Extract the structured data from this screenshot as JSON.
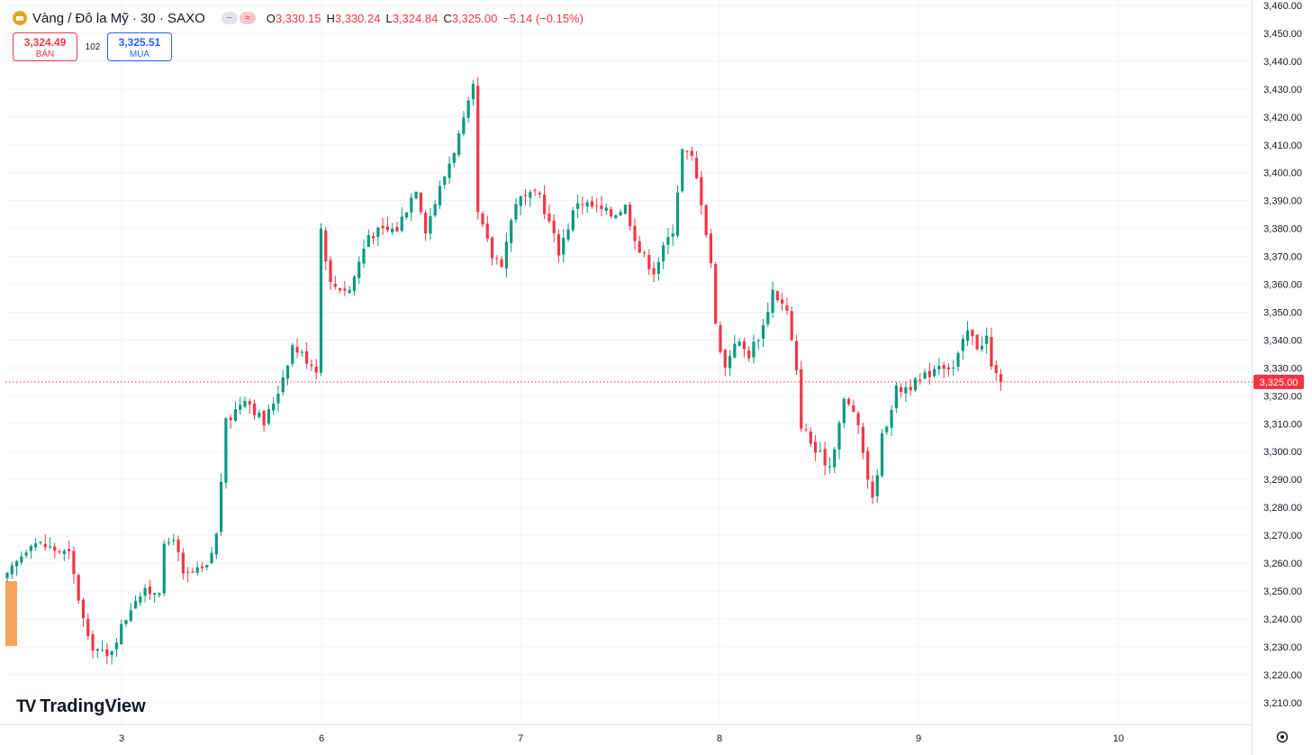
{
  "header": {
    "symbol_title": "Vàng / Đô la Mỹ · 30 · SAXO",
    "ohlc": {
      "o_label": "O",
      "o_value": "3,330.15",
      "h_label": "H",
      "h_value": "3,330.24",
      "l_label": "L",
      "l_value": "3,324.84",
      "c_label": "C",
      "c_value": "3,325.00",
      "change": "−5.14 (−0.15%)"
    }
  },
  "trade": {
    "sell_price": "3,324.49",
    "sell_label": "BÁN",
    "spread": "102",
    "buy_price": "3,325.51",
    "buy_label": "MUA"
  },
  "brand": {
    "name": "TradingView"
  },
  "colors": {
    "up": "#089981",
    "down": "#f23645",
    "grid": "#f0f3fa",
    "text": "#131722"
  },
  "chart_data": {
    "type": "candlestick",
    "interval": "30",
    "y_ticks": [
      "3,460.00",
      "3,450.00",
      "3,440.00",
      "3,430.00",
      "3,420.00",
      "3,410.00",
      "3,400.00",
      "3,390.00",
      "3,380.00",
      "3,370.00",
      "3,360.00",
      "3,350.00",
      "3,340.00",
      "3,330.00",
      "3,320.00",
      "3,310.00",
      "3,300.00",
      "3,290.00",
      "3,280.00",
      "3,270.00",
      "3,260.00",
      "3,250.00",
      "3,240.00",
      "3,230.00",
      "3,220.00",
      "3,210.00"
    ],
    "x_ticks": [
      "3",
      "6",
      "7",
      "8",
      "9",
      "10"
    ],
    "ylim": [
      3205,
      3462
    ],
    "last_price": 3325.0,
    "last_price_label": "3,325.00",
    "price_path": [
      {
        "t": 0,
        "p": 3255
      },
      {
        "t": 5,
        "p": 3268
      },
      {
        "t": 13,
        "p": 3263
      },
      {
        "t": 17,
        "p": 3232
      },
      {
        "t": 21,
        "p": 3226
      },
      {
        "t": 27,
        "p": 3248
      },
      {
        "t": 32,
        "p": 3251
      },
      {
        "t": 33,
        "p": 3265
      },
      {
        "t": 35,
        "p": 3270
      },
      {
        "t": 37,
        "p": 3255
      },
      {
        "t": 42,
        "p": 3258
      },
      {
        "t": 44,
        "p": 3270
      },
      {
        "t": 46,
        "p": 3310
      },
      {
        "t": 50,
        "p": 3320
      },
      {
        "t": 54,
        "p": 3310
      },
      {
        "t": 57,
        "p": 3322
      },
      {
        "t": 60,
        "p": 3338
      },
      {
        "t": 65,
        "p": 3330
      },
      {
        "t": 66,
        "p": 3380
      },
      {
        "t": 68,
        "p": 3360
      },
      {
        "t": 72,
        "p": 3358
      },
      {
        "t": 76,
        "p": 3378
      },
      {
        "t": 82,
        "p": 3380
      },
      {
        "t": 86,
        "p": 3395
      },
      {
        "t": 88,
        "p": 3380
      },
      {
        "t": 96,
        "p": 3418
      },
      {
        "t": 98,
        "p": 3430
      },
      {
        "t": 99,
        "p": 3385
      },
      {
        "t": 102,
        "p": 3370
      },
      {
        "t": 104,
        "p": 3368
      },
      {
        "t": 107,
        "p": 3390
      },
      {
        "t": 112,
        "p": 3392
      },
      {
        "t": 116,
        "p": 3372
      },
      {
        "t": 120,
        "p": 3390
      },
      {
        "t": 127,
        "p": 3385
      },
      {
        "t": 130,
        "p": 3388
      },
      {
        "t": 133,
        "p": 3372
      },
      {
        "t": 136,
        "p": 3365
      },
      {
        "t": 140,
        "p": 3380
      },
      {
        "t": 142,
        "p": 3408
      },
      {
        "t": 144,
        "p": 3405
      },
      {
        "t": 146,
        "p": 3390
      },
      {
        "t": 148,
        "p": 3368
      },
      {
        "t": 149,
        "p": 3345
      },
      {
        "t": 151,
        "p": 3330
      },
      {
        "t": 153,
        "p": 3340
      },
      {
        "t": 156,
        "p": 3335
      },
      {
        "t": 159,
        "p": 3345
      },
      {
        "t": 161,
        "p": 3358
      },
      {
        "t": 164,
        "p": 3350
      },
      {
        "t": 166,
        "p": 3328
      },
      {
        "t": 167,
        "p": 3310
      },
      {
        "t": 170,
        "p": 3300
      },
      {
        "t": 173,
        "p": 3295
      },
      {
        "t": 176,
        "p": 3318
      },
      {
        "t": 178,
        "p": 3315
      },
      {
        "t": 180,
        "p": 3300
      },
      {
        "t": 182,
        "p": 3282
      },
      {
        "t": 184,
        "p": 3305
      },
      {
        "t": 187,
        "p": 3322
      },
      {
        "t": 192,
        "p": 3325
      },
      {
        "t": 196,
        "p": 3332
      },
      {
        "t": 199,
        "p": 3330
      },
      {
        "t": 202,
        "p": 3343
      },
      {
        "t": 204,
        "p": 3338
      },
      {
        "t": 206,
        "p": 3341
      },
      {
        "t": 207,
        "p": 3330
      },
      {
        "t": 209,
        "p": 3325
      }
    ]
  }
}
